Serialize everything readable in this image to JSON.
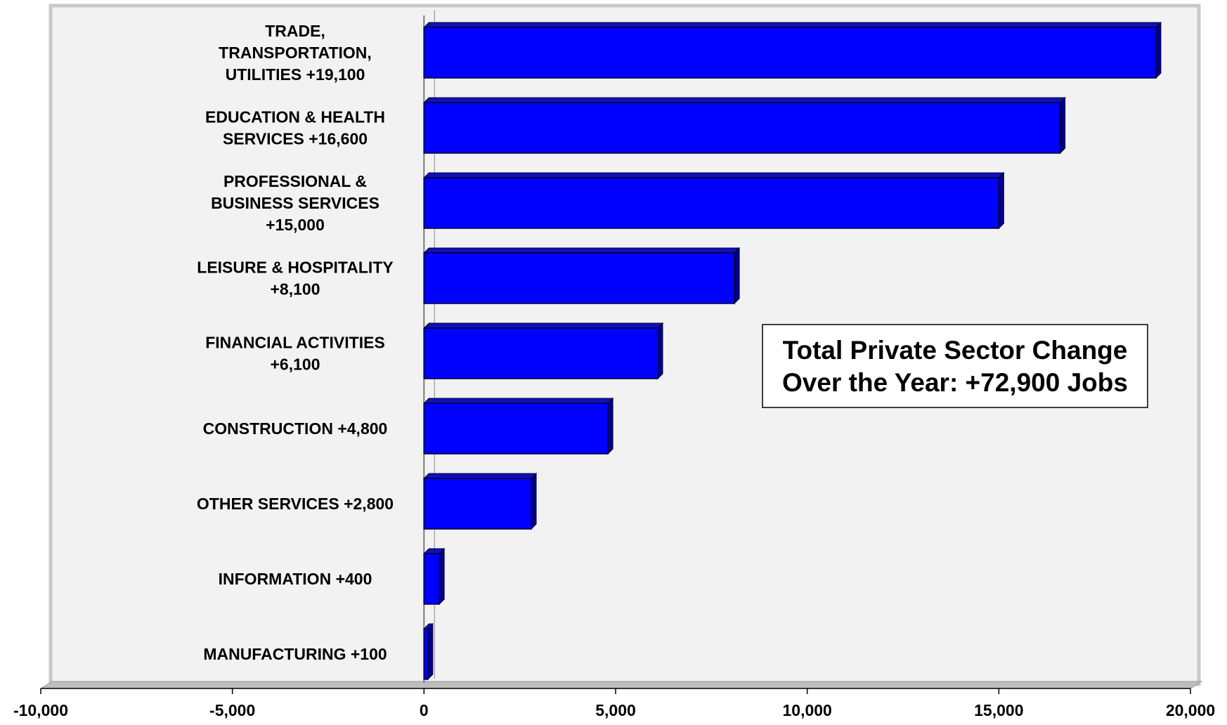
{
  "chart_data": {
    "type": "bar",
    "orientation": "horizontal",
    "categories": [
      "TRADE, TRANSPORTATION, UTILITIES +19,100",
      "EDUCATION & HEALTH SERVICES +16,600",
      "PROFESSIONAL & BUSINESS SERVICES +15,000",
      "LEISURE & HOSPITALITY +8,100",
      "FINANCIAL ACTIVITIES +6,100",
      "CONSTRUCTION +4,800",
      "OTHER SERVICES +2,800",
      "INFORMATION +400",
      "MANUFACTURING +100"
    ],
    "category_label_lines": [
      [
        "TRADE,",
        "TRANSPORTATION,",
        "UTILITIES +19,100"
      ],
      [
        "EDUCATION & HEALTH",
        "SERVICES  +16,600"
      ],
      [
        "PROFESSIONAL &",
        "BUSINESS SERVICES",
        "+15,000"
      ],
      [
        "LEISURE & HOSPITALITY",
        "+8,100"
      ],
      [
        "FINANCIAL ACTIVITIES",
        "+6,100"
      ],
      [
        "CONSTRUCTION +4,800"
      ],
      [
        "OTHER SERVICES +2,800"
      ],
      [
        "INFORMATION +400"
      ],
      [
        "MANUFACTURING +100"
      ]
    ],
    "values": [
      19100,
      16600,
      15000,
      8100,
      6100,
      4800,
      2800,
      400,
      100
    ],
    "xlim": [
      -10000,
      20000
    ],
    "xticks": [
      -10000,
      -5000,
      0,
      5000,
      10000,
      15000,
      20000
    ],
    "xtick_labels": [
      "-10,000",
      "-5,000",
      "0",
      "5,000",
      "10,000",
      "15,000",
      "20,000"
    ],
    "title": "",
    "xlabel": "",
    "ylabel": "",
    "grid": false,
    "legend": "none",
    "annotation": {
      "lines": [
        "Total Private Sector Change",
        "Over the Year: +72,900 Jobs"
      ]
    },
    "colors": {
      "bar_front": "#0000ff",
      "bar_top": "#1010b8",
      "bar_side": "#00008a",
      "bar_outline": "#000033",
      "plot_background": "#f2f2f2",
      "plot_border": "#c8c8c8",
      "floor": "#bdbdbd"
    }
  }
}
